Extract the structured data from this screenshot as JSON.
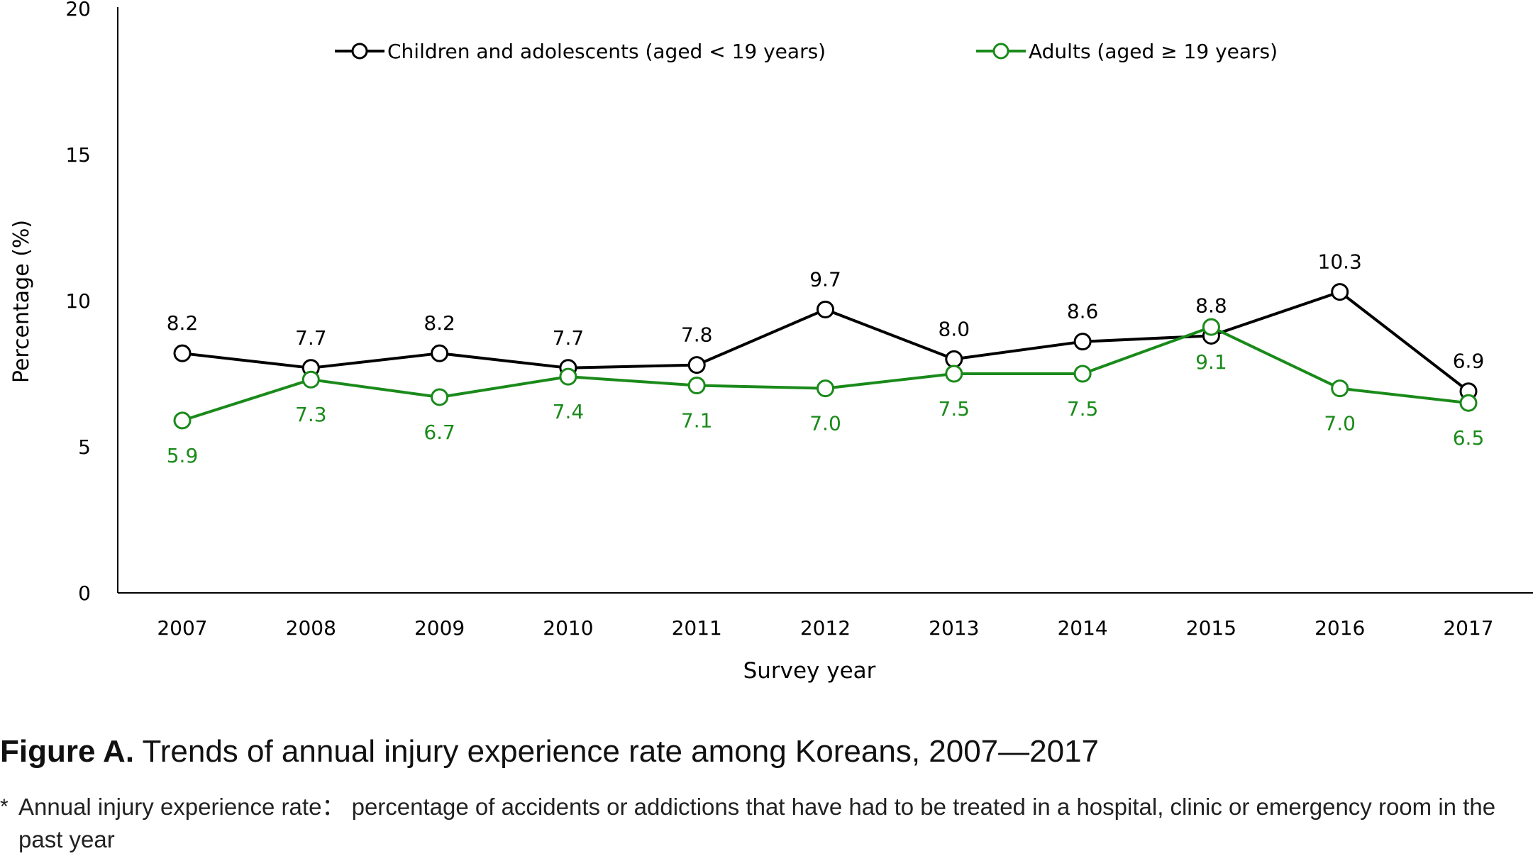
{
  "figure": {
    "caption_lead": "Figure A.",
    "caption_text": " Trends of annual injury experience rate among Koreans, 2007—2017",
    "footnote_marker": "*",
    "footnote_text": "Annual injury experience rate： percentage of accidents or addictions that have had to be treated in a hospital, clinic or emergency room in the past year"
  },
  "colors": {
    "children": "#000000",
    "adults": "#1a8a1a",
    "axis": "#000000"
  },
  "chart_data": {
    "type": "line",
    "xlabel": "Survey year",
    "ylabel": "Percentage (%)",
    "ylim": [
      0,
      20
    ],
    "yticks": [
      "0",
      "5",
      "10",
      "15",
      "20"
    ],
    "categories": [
      "2007",
      "2008",
      "2009",
      "2010",
      "2011",
      "2012",
      "2013",
      "2014",
      "2015",
      "2016",
      "2017"
    ],
    "grid": false,
    "legend_position": "top",
    "series": [
      {
        "name": "Children and adolescents (aged < 19 years)",
        "key": "children",
        "values": [
          8.2,
          7.7,
          8.2,
          7.7,
          7.8,
          9.7,
          8.0,
          8.6,
          8.8,
          10.3,
          6.9
        ],
        "labels": [
          "8.2",
          "7.7",
          "8.2",
          "7.7",
          "7.8",
          "9.7",
          "8.0",
          "8.6",
          "8.8",
          "10.3",
          "6.9"
        ],
        "label_position": "above"
      },
      {
        "name": "Adults (aged ≥ 19 years)",
        "key": "adults",
        "values": [
          5.9,
          7.3,
          6.7,
          7.4,
          7.1,
          7.0,
          7.5,
          7.5,
          9.1,
          7.0,
          6.5
        ],
        "labels": [
          "5.9",
          "7.3",
          "6.7",
          "7.4",
          "7.1",
          "7.0",
          "7.5",
          "7.5",
          "9.1",
          "7.0",
          "6.5"
        ],
        "label_position": "below"
      }
    ]
  }
}
